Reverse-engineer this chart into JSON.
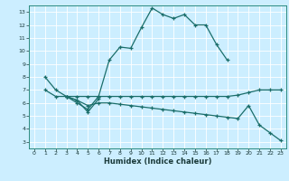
{
  "xlabel": "Humidex (Indice chaleur)",
  "bg_color": "#cceeff",
  "grid_color": "#ffffff",
  "line_color": "#1a6e6a",
  "xlim": [
    -0.5,
    23.5
  ],
  "ylim": [
    2.5,
    13.5
  ],
  "xticks": [
    0,
    1,
    2,
    3,
    4,
    5,
    6,
    7,
    8,
    9,
    10,
    11,
    12,
    13,
    14,
    15,
    16,
    17,
    18,
    19,
    20,
    21,
    22,
    23
  ],
  "yticks": [
    3,
    4,
    5,
    6,
    7,
    8,
    9,
    10,
    11,
    12,
    13
  ],
  "series": [
    {
      "x": [
        1,
        2,
        3,
        4,
        5,
        6,
        7,
        8,
        9,
        10,
        11,
        12,
        13,
        14,
        15,
        16,
        17,
        18
      ],
      "y": [
        8.0,
        7.0,
        6.5,
        6.0,
        5.5,
        6.5,
        9.3,
        10.3,
        10.2,
        11.8,
        13.3,
        12.8,
        12.5,
        12.8,
        12.0,
        12.0,
        10.5,
        9.3
      ]
    },
    {
      "x": [
        1,
        2,
        3,
        4,
        5,
        6,
        7,
        8,
        9,
        10,
        11,
        12,
        13,
        14,
        15,
        16,
        17,
        18,
        19,
        20,
        21,
        22,
        23
      ],
      "y": [
        7.0,
        6.5,
        6.5,
        6.5,
        6.5,
        6.5,
        6.5,
        6.5,
        6.5,
        6.5,
        6.5,
        6.5,
        6.5,
        6.5,
        6.5,
        6.5,
        6.5,
        6.5,
        6.6,
        6.8,
        7.0,
        7.0,
        7.0
      ]
    },
    {
      "x": [
        3,
        4,
        5,
        6,
        7,
        8,
        9,
        10,
        11,
        12,
        13,
        14,
        15,
        16,
        17,
        18,
        19,
        20,
        21,
        22,
        23
      ],
      "y": [
        6.5,
        6.2,
        5.8,
        6.0,
        6.0,
        5.9,
        5.8,
        5.7,
        5.6,
        5.5,
        5.4,
        5.3,
        5.2,
        5.1,
        5.0,
        4.9,
        4.8,
        5.8,
        4.3,
        3.7,
        3.1
      ]
    },
    {
      "x": [
        3,
        4,
        5,
        6
      ],
      "y": [
        6.5,
        6.2,
        5.3,
        6.3
      ]
    }
  ]
}
